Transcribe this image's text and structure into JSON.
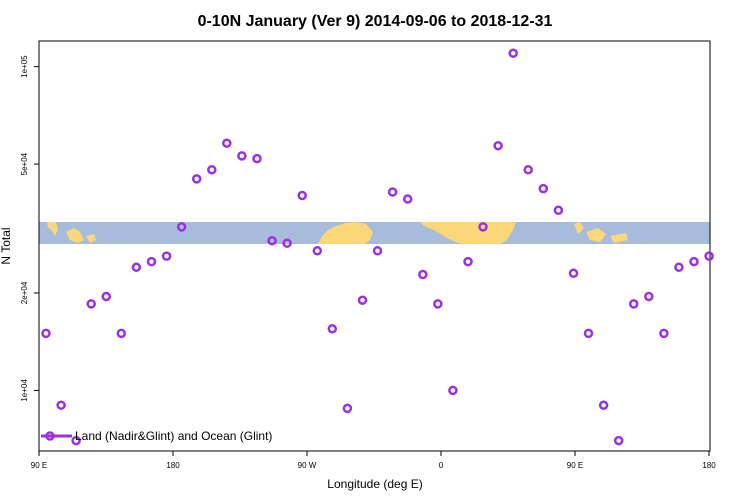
{
  "chart_data": {
    "type": "scatter",
    "title": "0-10N January (Ver 9)   2014-09-06 to 2018-12-31",
    "xlabel": "Longitude (deg E)",
    "ylabel": "N Total",
    "x_tick_labels": [
      "90 E",
      "180",
      "90 W",
      "0",
      "90 E",
      "180"
    ],
    "y_tick_labels": [
      "1e+04",
      "2e+04",
      "5e+04",
      "1e+05"
    ],
    "y_scale": "log",
    "ylim": [
      6500,
      120000
    ],
    "legend": {
      "label": "Land (Nadir&Glint) and Ocean (Glint)",
      "position": "bottom-left"
    },
    "background_map": {
      "latitude_band": "0-10N",
      "ocean_color": "#a7bcdc",
      "land_color": "#fbd77a"
    },
    "series": [
      {
        "name": "Land (Nadir&Glint) and Ocean (Glint)",
        "color": "#9b30e0",
        "points": [
          [
            0,
            15000
          ],
          [
            1,
            9000
          ],
          [
            2,
            7000
          ],
          [
            3,
            18500
          ],
          [
            4,
            19500
          ],
          [
            5,
            15000
          ],
          [
            6,
            24000
          ],
          [
            7,
            25000
          ],
          [
            8,
            26000
          ],
          [
            9,
            32000
          ],
          [
            10,
            45000
          ],
          [
            11,
            48000
          ],
          [
            12,
            58000
          ],
          [
            13,
            53000
          ],
          [
            14,
            52000
          ],
          [
            15,
            29000
          ],
          [
            16,
            28500
          ],
          [
            17,
            40000
          ],
          [
            18,
            27000
          ],
          [
            19,
            15500
          ],
          [
            20,
            8800
          ],
          [
            21,
            19000
          ],
          [
            22,
            27000
          ],
          [
            23,
            41000
          ],
          [
            24,
            39000
          ],
          [
            25,
            22800
          ],
          [
            26,
            18500
          ],
          [
            27,
            10000
          ],
          [
            28,
            25000
          ],
          [
            29,
            32000
          ],
          [
            30,
            57000
          ],
          [
            31,
            110000
          ],
          [
            32,
            48000
          ],
          [
            33,
            42000
          ],
          [
            34,
            36000
          ],
          [
            35,
            23000
          ],
          [
            36,
            15000
          ],
          [
            37,
            9000
          ],
          [
            38,
            7000
          ],
          [
            39,
            18500
          ],
          [
            40,
            19500
          ],
          [
            41,
            15000
          ],
          [
            42,
            24000
          ],
          [
            43,
            25000
          ],
          [
            44,
            26000
          ]
        ]
      }
    ]
  }
}
